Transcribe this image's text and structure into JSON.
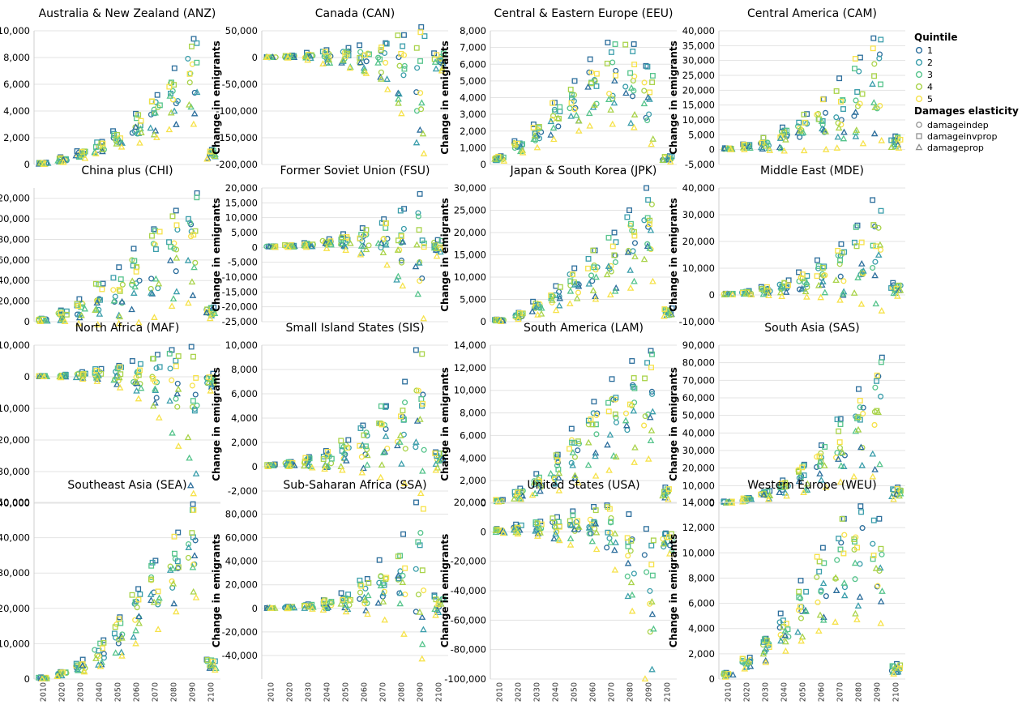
{
  "chart_data": {
    "type": "scatter",
    "x": [
      2010,
      2020,
      2030,
      2040,
      2050,
      2060,
      2070,
      2080,
      2090,
      2100
    ],
    "ylabel": "Change in emigrants",
    "legend": {
      "placement": "right",
      "quintile_title": "Quintile",
      "quintiles": [
        "1",
        "2",
        "3",
        "4",
        "5"
      ],
      "quintile_colors": [
        "#2c6e9c",
        "#3b9eab",
        "#56c48c",
        "#a9d34a",
        "#f6e24a"
      ],
      "elasticity_title": "Damages elasticity",
      "elasticities": [
        {
          "name": "damageindep",
          "marker": "circle"
        },
        {
          "name": "damageinvprop",
          "marker": "square"
        },
        {
          "name": "damageprop",
          "marker": "triangle"
        }
      ]
    },
    "panels": [
      {
        "title": "Australia & New Zealand (ANZ)",
        "ylim": [
          0,
          10000
        ],
        "ticks": [
          0,
          2000,
          4000,
          6000,
          8000,
          10000
        ],
        "lo": [
          0,
          150,
          450,
          800,
          1300,
          1600,
          2000,
          2600,
          3000,
          400
        ],
        "hi": [
          150,
          550,
          1000,
          1700,
          2500,
          3800,
          5200,
          7200,
          9400,
          1100
        ]
      },
      {
        "title": "Canada (CAN)",
        "ylim": [
          -200000,
          50000
        ],
        "ticks": [
          -200000,
          -150000,
          -100000,
          -50000,
          0,
          50000
        ],
        "lo": [
          0,
          -1000,
          -5000,
          -12000,
          -20000,
          -30000,
          -60000,
          -105000,
          -180000,
          -25000
        ],
        "hi": [
          1000,
          4000,
          9000,
          14000,
          18000,
          23000,
          27000,
          42000,
          57000,
          8000
        ]
      },
      {
        "title": "Central & Eastern Europe (EEU)",
        "ylim": [
          0,
          8000
        ],
        "ticks": [
          0,
          1000,
          2000,
          3000,
          4000,
          5000,
          6000,
          7000,
          8000
        ],
        "lo": [
          200,
          700,
          1000,
          1500,
          2000,
          2300,
          2400,
          2200,
          1200,
          150
        ],
        "hi": [
          500,
          1400,
          2400,
          3700,
          5000,
          6300,
          7300,
          7200,
          5900,
          500
        ]
      },
      {
        "title": "Central America (CAM)",
        "ylim": [
          -5000,
          40000
        ],
        "ticks": [
          -5000,
          0,
          5000,
          10000,
          15000,
          20000,
          25000,
          30000,
          35000,
          40000
        ],
        "lo": [
          0,
          0,
          -300,
          -500,
          -400,
          0,
          500,
          2000,
          3000,
          500
        ],
        "hi": [
          500,
          1800,
          4000,
          7500,
          12000,
          17000,
          24000,
          31000,
          37500,
          4500
        ]
      },
      {
        "title": "China plus (CHI)",
        "ylim": [
          0,
          130000
        ],
        "ticks": [
          0,
          20000,
          40000,
          60000,
          80000,
          100000,
          120000
        ],
        "lo": [
          0,
          0,
          -2000,
          -3000,
          -2000,
          -1000,
          4000,
          15000,
          18000,
          3000
        ],
        "hi": [
          3000,
          11000,
          22000,
          37000,
          53000,
          71000,
          90000,
          108000,
          125000,
          14000
        ]
      },
      {
        "title": "Former Soviet Union (FSU)",
        "ylim": [
          -25000,
          20000
        ],
        "ticks": [
          -25000,
          -20000,
          -15000,
          -10000,
          -5000,
          0,
          5000,
          10000,
          15000,
          20000
        ],
        "lo": [
          0,
          0,
          0,
          -400,
          -1000,
          -2500,
          -6000,
          -13000,
          -24000,
          -3000
        ],
        "hi": [
          400,
          800,
          1500,
          2800,
          4500,
          6500,
          9500,
          13000,
          18000,
          2500
        ]
      },
      {
        "title": "Japan & South Korea (JPK)",
        "ylim": [
          0,
          30000
        ],
        "ticks": [
          0,
          5000,
          10000,
          15000,
          20000,
          25000,
          30000
        ],
        "lo": [
          0,
          500,
          1500,
          2500,
          4000,
          5000,
          6000,
          7500,
          9000,
          1200
        ],
        "hi": [
          500,
          2000,
          4500,
          8000,
          12000,
          16000,
          20000,
          25000,
          30000,
          3000
        ]
      },
      {
        "title": "Middle East (MDE)",
        "ylim": [
          -10000,
          40000
        ],
        "ticks": [
          -10000,
          0,
          10000,
          20000,
          30000,
          40000
        ],
        "lo": [
          0,
          0,
          -300,
          -600,
          -800,
          -1000,
          -2000,
          -3500,
          -6000,
          -500
        ],
        "hi": [
          500,
          1500,
          3000,
          5500,
          8500,
          13000,
          19000,
          26000,
          35500,
          4500
        ]
      },
      {
        "title": "North Africa (MAF)",
        "ylim": [
          -40000,
          10000
        ],
        "ticks": [
          -40000,
          -30000,
          -20000,
          -10000,
          0,
          10000
        ],
        "lo": [
          0,
          -300,
          -800,
          -1500,
          -3500,
          -7000,
          -13000,
          -22000,
          -37000,
          -4500
        ],
        "hi": [
          300,
          700,
          1500,
          2500,
          3500,
          5000,
          7000,
          8500,
          9500,
          1000
        ]
      },
      {
        "title": "Small Island States (SIS)",
        "ylim": [
          -3000,
          10000
        ],
        "ticks": [
          -2000,
          0,
          2000,
          4000,
          6000,
          8000,
          10000
        ],
        "lo": [
          0,
          0,
          -100,
          -200,
          -300,
          -500,
          -900,
          -1400,
          -2200,
          -300
        ],
        "hi": [
          200,
          400,
          800,
          1300,
          2200,
          3400,
          5000,
          7000,
          9600,
          1200
        ]
      },
      {
        "title": "South America (LAM)",
        "ylim": [
          0,
          14000
        ],
        "ticks": [
          0,
          2000,
          4000,
          6000,
          8000,
          10000,
          12000,
          14000
        ],
        "lo": [
          100,
          300,
          700,
          1100,
          1800,
          2400,
          2900,
          3600,
          3900,
          300
        ],
        "hi": [
          300,
          1300,
          2600,
          4300,
          6600,
          9000,
          11000,
          12600,
          13500,
          1400
        ]
      },
      {
        "title": "South Asia (SAS)",
        "ylim": [
          0,
          90000
        ],
        "ticks": [
          0,
          10000,
          20000,
          30000,
          40000,
          50000,
          60000,
          70000,
          80000,
          90000
        ],
        "lo": [
          0,
          700,
          2000,
          4000,
          6000,
          9000,
          12000,
          15000,
          15000,
          2000
        ],
        "hi": [
          1000,
          3000,
          7000,
          13000,
          22000,
          33000,
          48000,
          65000,
          83000,
          9000
        ]
      },
      {
        "title": "Southeast Asia (SEA)",
        "ylim": [
          0,
          50000
        ],
        "ticks": [
          0,
          10000,
          20000,
          30000,
          40000,
          50000
        ],
        "lo": [
          0,
          700,
          2000,
          3500,
          6500,
          10000,
          14000,
          19000,
          23000,
          2500
        ],
        "hi": [
          500,
          2000,
          5500,
          11000,
          17500,
          25500,
          33500,
          41500,
          49500,
          5500
        ]
      },
      {
        "title": "Sub-Saharan Africa (SSA)",
        "ylim": [
          -60000,
          90000
        ],
        "ticks": [
          -40000,
          -20000,
          0,
          20000,
          40000,
          60000,
          80000
        ],
        "lo": [
          0,
          -300,
          -700,
          -1500,
          -3000,
          -5000,
          -10000,
          -22000,
          -43000,
          -6000
        ],
        "hi": [
          300,
          1500,
          3500,
          7000,
          13000,
          25000,
          41000,
          63000,
          90000,
          11000
        ]
      },
      {
        "title": "United States (USA)",
        "ylim": [
          -100000,
          20000
        ],
        "ticks": [
          -100000,
          -80000,
          -60000,
          -40000,
          -20000,
          0,
          20000
        ],
        "lo": [
          -1000,
          -1500,
          -3000,
          -6000,
          -9000,
          -12000,
          -26000,
          -54000,
          -100000,
          -15000
        ],
        "hi": [
          2000,
          5000,
          7000,
          10000,
          14000,
          17000,
          18000,
          12000,
          2000,
          -1000
        ]
      },
      {
        "title": "Western Europe (WEU)",
        "ylim": [
          0,
          14000
        ],
        "ticks": [
          0,
          2000,
          4000,
          6000,
          8000,
          10000,
          12000,
          14000
        ],
        "lo": [
          150,
          800,
          1300,
          2200,
          3000,
          3800,
          4500,
          4700,
          4400,
          400
        ],
        "hi": [
          500,
          1700,
          3200,
          5200,
          7800,
          10400,
          12700,
          13700,
          12700,
          1200
        ]
      }
    ]
  }
}
